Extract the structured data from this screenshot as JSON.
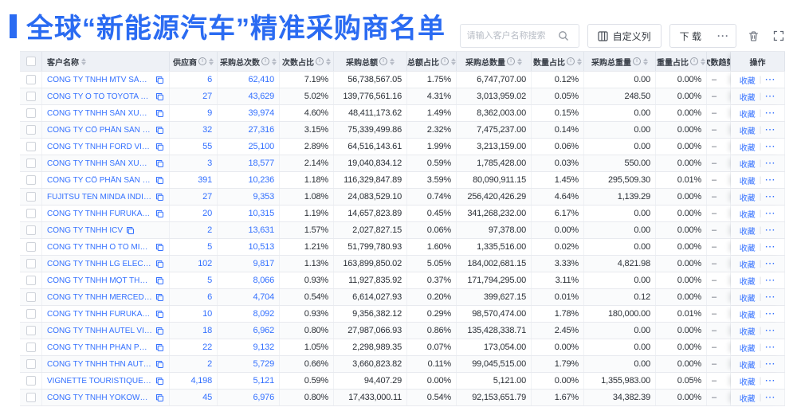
{
  "title": {
    "text": "全球“新能源汽车”精准采购商名单"
  },
  "toolbar": {
    "search_placeholder": "请输入客户名称搜索",
    "customize_columns_label": "自定义列",
    "download_label": "下 载",
    "download_more_label": "···"
  },
  "colors": {
    "accent": "#3370ff",
    "title": "#2a6bf2",
    "header-bg": "#eef1f6"
  },
  "table": {
    "columns": [
      {
        "label": "客户名称",
        "info": false,
        "sort": true
      },
      {
        "label": "供应商",
        "info": true,
        "sort": true
      },
      {
        "label": "采购总次数",
        "info": true,
        "sort": true
      },
      {
        "label": "次数占比",
        "info": true,
        "sort": true
      },
      {
        "label": "采购总额",
        "info": true,
        "sort": true
      },
      {
        "label": "总额占比",
        "info": true,
        "sort": true
      },
      {
        "label": "采购总数量",
        "info": true,
        "sort": true
      },
      {
        "label": "数量占比",
        "info": true,
        "sort": true
      },
      {
        "label": "采购总重量",
        "info": true,
        "sort": true
      },
      {
        "label": "重量占比",
        "info": true,
        "sort": true
      },
      {
        "label": "次数趋势",
        "info": false,
        "sort": false
      },
      {
        "label": "操作",
        "info": false,
        "sort": false
      }
    ],
    "op_favorite_label": "收藏",
    "op_divider": "|",
    "op_more_label": "···",
    "rows": [
      {
        "name": "CÔNG TY TNHH MTV SẢN XUẤ...",
        "supplier": "6",
        "count": "62,410",
        "count_pct": "7.19%",
        "amount": "56,738,567.05",
        "amount_pct": "1.75%",
        "qty": "6,747,707.00",
        "qty_pct": "0.12%",
        "weight": "0.00",
        "weight_pct": "0.00%",
        "trend": "–"
      },
      {
        "name": "CÔNG TY Ô TÔ TOYOTA VIỆT ...",
        "supplier": "27",
        "count": "43,629",
        "count_pct": "5.02%",
        "amount": "139,776,561.16",
        "amount_pct": "4.31%",
        "qty": "3,013,959.02",
        "qty_pct": "0.05%",
        "weight": "248.50",
        "weight_pct": "0.00%",
        "trend": "–"
      },
      {
        "name": "CÔNG TY TNHH SẢN XUẤT VÀ ...",
        "supplier": "9",
        "count": "39,974",
        "count_pct": "4.60%",
        "amount": "48,411,173.62",
        "amount_pct": "1.49%",
        "qty": "8,362,003.00",
        "qty_pct": "0.15%",
        "weight": "0.00",
        "weight_pct": "0.00%",
        "trend": "–"
      },
      {
        "name": "CÔNG TY CỔ PHẦN SẢN XUẤT...",
        "supplier": "32",
        "count": "27,316",
        "count_pct": "3.15%",
        "amount": "75,339,499.86",
        "amount_pct": "2.32%",
        "qty": "7,475,237.00",
        "qty_pct": "0.14%",
        "weight": "0.00",
        "weight_pct": "0.00%",
        "trend": "–"
      },
      {
        "name": "CÔNG TY TNHH FORD VIỆT NAM",
        "supplier": "55",
        "count": "25,100",
        "count_pct": "2.89%",
        "amount": "64,516,143.61",
        "amount_pct": "1.99%",
        "qty": "3,213,159.00",
        "qty_pct": "0.06%",
        "weight": "0.00",
        "weight_pct": "0.00%",
        "trend": "–"
      },
      {
        "name": "CÔNG TY TNHH SẢN XUẤT VÀ ...",
        "supplier": "3",
        "count": "18,577",
        "count_pct": "2.14%",
        "amount": "19,040,834.12",
        "amount_pct": "0.59%",
        "qty": "1,785,428.00",
        "qty_pct": "0.03%",
        "weight": "550.00",
        "weight_pct": "0.00%",
        "trend": "–"
      },
      {
        "name": "CÔNG TY CỔ PHẦN SẢN XUẤT...",
        "supplier": "391",
        "count": "10,236",
        "count_pct": "1.18%",
        "amount": "116,329,847.89",
        "amount_pct": "3.59%",
        "qty": "80,090,911.15",
        "qty_pct": "1.45%",
        "weight": "295,509.30",
        "weight_pct": "0.01%",
        "trend": "–"
      },
      {
        "name": "FUJITSU TEN MINDA INDIA PVT...",
        "supplier": "27",
        "count": "9,353",
        "count_pct": "1.08%",
        "amount": "24,083,529.10",
        "amount_pct": "0.74%",
        "qty": "256,420,426.29",
        "qty_pct": "4.64%",
        "weight": "1,139.29",
        "weight_pct": "0.00%",
        "trend": "–"
      },
      {
        "name": "CÔNG TY TNHH FURUKAWA A...",
        "supplier": "20",
        "count": "10,315",
        "count_pct": "1.19%",
        "amount": "14,657,823.89",
        "amount_pct": "0.45%",
        "qty": "341,268,232.00",
        "qty_pct": "6.17%",
        "weight": "0.00",
        "weight_pct": "0.00%",
        "trend": "–"
      },
      {
        "name": "CÔNG TY TNHH ICV",
        "supplier": "2",
        "count": "13,631",
        "count_pct": "1.57%",
        "amount": "2,027,827.15",
        "amount_pct": "0.06%",
        "qty": "97,378.00",
        "qty_pct": "0.00%",
        "weight": "0.00",
        "weight_pct": "0.00%",
        "trend": "–"
      },
      {
        "name": "CÔNG TY TNHH Ô TÔ MITSUBI...",
        "supplier": "5",
        "count": "10,513",
        "count_pct": "1.21%",
        "amount": "51,799,780.93",
        "amount_pct": "1.60%",
        "qty": "1,335,516.00",
        "qty_pct": "0.02%",
        "weight": "0.00",
        "weight_pct": "0.00%",
        "trend": "–"
      },
      {
        "name": "CÔNG TY TNHH LG ELECTRON...",
        "supplier": "102",
        "count": "9,817",
        "count_pct": "1.13%",
        "amount": "163,899,850.02",
        "amount_pct": "5.05%",
        "qty": "184,002,681.15",
        "qty_pct": "3.33%",
        "weight": "4,821.98",
        "weight_pct": "0.00%",
        "trend": "–"
      },
      {
        "name": "CÔNG TY TNHH MỘT THÀNH V...",
        "supplier": "5",
        "count": "8,066",
        "count_pct": "0.93%",
        "amount": "11,927,835.92",
        "amount_pct": "0.37%",
        "qty": "171,794,295.00",
        "qty_pct": "3.11%",
        "weight": "0.00",
        "weight_pct": "0.00%",
        "trend": "–"
      },
      {
        "name": "CÔNG TY TNHH MERCEDES–B...",
        "supplier": "6",
        "count": "4,704",
        "count_pct": "0.54%",
        "amount": "6,614,027.93",
        "amount_pct": "0.20%",
        "qty": "399,627.15",
        "qty_pct": "0.01%",
        "weight": "0.12",
        "weight_pct": "0.00%",
        "trend": "–"
      },
      {
        "name": "CÔNG TY TNHH FURUKAWA A...",
        "supplier": "10",
        "count": "8,092",
        "count_pct": "0.93%",
        "amount": "9,356,382.12",
        "amount_pct": "0.29%",
        "qty": "98,570,474.00",
        "qty_pct": "1.78%",
        "weight": "180,000.00",
        "weight_pct": "0.01%",
        "trend": "–"
      },
      {
        "name": "CÔNG TY TNHH AUTEL VIỆT N...",
        "supplier": "18",
        "count": "6,962",
        "count_pct": "0.80%",
        "amount": "27,987,066.93",
        "amount_pct": "0.86%",
        "qty": "135,428,338.71",
        "qty_pct": "2.45%",
        "weight": "0.00",
        "weight_pct": "0.00%",
        "trend": "–"
      },
      {
        "name": "CÔNG TY TNHH PHÂN PHỐI T...",
        "supplier": "22",
        "count": "9,132",
        "count_pct": "1.05%",
        "amount": "2,298,989.35",
        "amount_pct": "0.07%",
        "qty": "173,054.00",
        "qty_pct": "0.00%",
        "weight": "0.00",
        "weight_pct": "0.00%",
        "trend": "–"
      },
      {
        "name": "CÔNG TY TNHH THN AUTOPAR...",
        "supplier": "2",
        "count": "5,729",
        "count_pct": "0.66%",
        "amount": "3,660,823.82",
        "amount_pct": "0.11%",
        "qty": "99,045,515.00",
        "qty_pct": "1.79%",
        "weight": "0.00",
        "weight_pct": "0.00%",
        "trend": "–"
      },
      {
        "name": "VIGNETTE TOURISTIQUE G UNI...",
        "supplier": "4,198",
        "count": "5,121",
        "count_pct": "0.59%",
        "amount": "94,407.29",
        "amount_pct": "0.00%",
        "qty": "5,121.00",
        "qty_pct": "0.00%",
        "weight": "1,355,983.00",
        "weight_pct": "0.05%",
        "trend": "–"
      },
      {
        "name": "CÔNG TY TNHH YOKOWO VIỆT...",
        "supplier": "45",
        "count": "6,976",
        "count_pct": "0.80%",
        "amount": "17,433,000.11",
        "amount_pct": "0.54%",
        "qty": "92,153,651.79",
        "qty_pct": "1.67%",
        "weight": "34,382.39",
        "weight_pct": "0.00%",
        "trend": "–"
      }
    ]
  }
}
